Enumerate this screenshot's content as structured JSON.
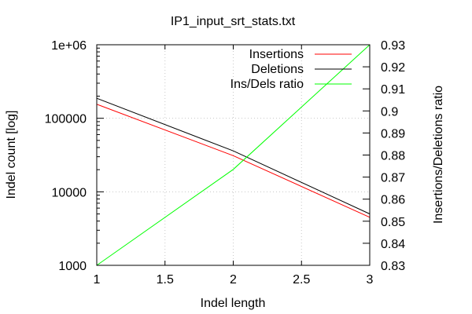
{
  "chart_data": {
    "type": "line",
    "title": "IP1_input_srt_stats.txt",
    "xlabel": "Indel length",
    "ylabel": "Indel count [log]",
    "y2label": "Insertions/Deletions ratio",
    "x": [
      1,
      2,
      3
    ],
    "xlim": [
      1,
      3
    ],
    "ylim": [
      1000,
      1000000
    ],
    "yscale": "log",
    "y2lim": [
      0.83,
      0.93
    ],
    "grid": true,
    "legend_position": "top-right",
    "xticks": [
      "1",
      "1.5",
      "2",
      "2.5",
      "3"
    ],
    "yticks": [
      "1000",
      "10000",
      "100000",
      "1e+06"
    ],
    "y2ticks": [
      "0.83",
      "0.84",
      "0.85",
      "0.86",
      "0.87",
      "0.88",
      "0.89",
      "0.9",
      "0.91",
      "0.92",
      "0.93"
    ],
    "series": [
      {
        "name": "Insertions",
        "axis": "left",
        "color": "#ff0000",
        "values": [
          155000,
          31000,
          4500
        ]
      },
      {
        "name": "Deletions",
        "axis": "left",
        "color": "#000000",
        "values": [
          187000,
          36000,
          5000
        ]
      },
      {
        "name": "Ins/Dels ratio",
        "axis": "right",
        "color": "#00ff00",
        "values": [
          0.83,
          0.8735,
          0.93
        ]
      }
    ]
  }
}
